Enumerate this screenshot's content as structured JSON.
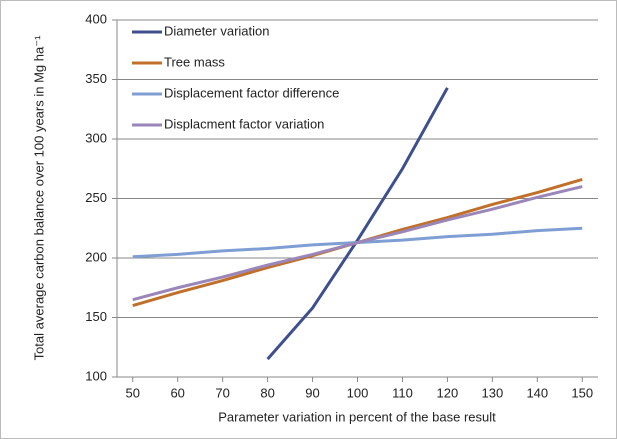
{
  "chart_data": {
    "type": "line",
    "x_label": "Parameter variation in percent of the base result",
    "y_label": "Total average carbon balance over 100 years in Mg ha⁻¹",
    "x": [
      50,
      60,
      70,
      80,
      90,
      100,
      110,
      120,
      130,
      140,
      150
    ],
    "series": [
      {
        "name": "Diameter variation",
        "color": "#3d4f8f",
        "values": [
          null,
          null,
          null,
          115,
          158,
          215,
          275,
          343,
          null,
          null,
          null
        ]
      },
      {
        "name": "Tree mass",
        "color": "#c0702a",
        "values": [
          160,
          171,
          181,
          192,
          202,
          213,
          224,
          234,
          245,
          255,
          266
        ]
      },
      {
        "name": "Displacement factor difference",
        "color": "#7f9fd4",
        "values": [
          201,
          203,
          206,
          208,
          211,
          213,
          215,
          218,
          220,
          223,
          225
        ]
      },
      {
        "name": "Displacment factor variation",
        "color": "#9a86b8",
        "values": [
          165,
          175,
          184,
          194,
          203,
          213,
          222,
          232,
          241,
          251,
          260
        ]
      }
    ],
    "xlim": [
      46.5,
      153.5
    ],
    "xticks": [
      50,
      60,
      70,
      80,
      90,
      100,
      110,
      120,
      130,
      140,
      150
    ],
    "ylim": [
      100,
      400
    ],
    "yticks": [
      100,
      150,
      200,
      250,
      300,
      350,
      400
    ],
    "grid": true,
    "legend": "top-left"
  }
}
